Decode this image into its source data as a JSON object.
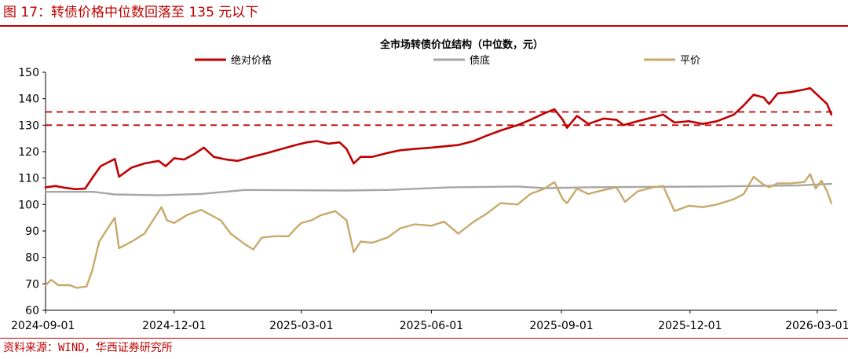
{
  "figure_title": "图 17：转债价格中位数回落至 135 元以下",
  "source_note": "资料来源：WIND，华西证券研究所",
  "colors": {
    "accent": "#c00000",
    "absolute": "#c00000",
    "bond_floor": "#a6a6a6",
    "parity": "#c8a96a"
  },
  "chart_data": {
    "type": "line",
    "title": "全市场转债价位结构（中位数，元）",
    "xlabel": "",
    "ylabel": "",
    "ylim": [
      60,
      150
    ],
    "yticks": [
      60,
      70,
      80,
      90,
      100,
      110,
      120,
      130,
      140,
      150
    ],
    "xlim": [
      "2024-09-01",
      "2026-03-15"
    ],
    "xticks": [
      "2024-09-01",
      "2024-12-01",
      "2025-03-01",
      "2025-06-01",
      "2025-09-01",
      "2025-12-01",
      "2026-03-01"
    ],
    "reference_lines": [
      135,
      130
    ],
    "legend_position": "top",
    "grid": false,
    "series": [
      {
        "name": "绝对价格",
        "color": "#c00000",
        "points": [
          [
            "2024-09-01",
            106.5
          ],
          [
            "2024-09-08",
            107
          ],
          [
            "2024-09-15",
            106.3
          ],
          [
            "2024-09-22",
            105.8
          ],
          [
            "2024-09-29",
            106
          ],
          [
            "2024-10-04",
            110
          ],
          [
            "2024-10-10",
            114.5
          ],
          [
            "2024-10-20",
            117.2
          ],
          [
            "2024-10-23",
            110.5
          ],
          [
            "2024-11-01",
            114
          ],
          [
            "2024-11-10",
            115.5
          ],
          [
            "2024-11-20",
            116.5
          ],
          [
            "2024-11-25",
            114.5
          ],
          [
            "2024-12-01",
            117.5
          ],
          [
            "2024-12-08",
            117
          ],
          [
            "2024-12-15",
            119
          ],
          [
            "2024-12-22",
            121.5
          ],
          [
            "2024-12-29",
            118
          ],
          [
            "2025-01-07",
            117
          ],
          [
            "2025-01-15",
            116.5
          ],
          [
            "2025-01-25",
            118
          ],
          [
            "2025-02-05",
            119.5
          ],
          [
            "2025-02-15",
            121
          ],
          [
            "2025-02-25",
            122.5
          ],
          [
            "2025-03-05",
            123.5
          ],
          [
            "2025-03-12",
            124
          ],
          [
            "2025-03-20",
            123
          ],
          [
            "2025-03-28",
            123.5
          ],
          [
            "2025-04-02",
            121
          ],
          [
            "2025-04-07",
            115.5
          ],
          [
            "2025-04-12",
            118
          ],
          [
            "2025-04-20",
            118
          ],
          [
            "2025-05-01",
            119.5
          ],
          [
            "2025-05-10",
            120.5
          ],
          [
            "2025-05-20",
            121
          ],
          [
            "2025-06-01",
            121.5
          ],
          [
            "2025-06-10",
            122
          ],
          [
            "2025-06-20",
            122.5
          ],
          [
            "2025-07-01",
            124
          ],
          [
            "2025-07-10",
            126
          ],
          [
            "2025-07-20",
            128
          ],
          [
            "2025-08-01",
            130
          ],
          [
            "2025-08-10",
            132
          ],
          [
            "2025-08-20",
            134.5
          ],
          [
            "2025-08-27",
            136
          ],
          [
            "2025-09-02",
            132
          ],
          [
            "2025-09-05",
            129
          ],
          [
            "2025-09-12",
            133.5
          ],
          [
            "2025-09-20",
            130.5
          ],
          [
            "2025-10-01",
            132.5
          ],
          [
            "2025-10-10",
            132
          ],
          [
            "2025-10-15",
            130
          ],
          [
            "2025-10-25",
            131.5
          ],
          [
            "2025-11-05",
            133
          ],
          [
            "2025-11-12",
            134
          ],
          [
            "2025-11-20",
            131
          ],
          [
            "2025-11-30",
            131.5
          ],
          [
            "2025-12-10",
            130.5
          ],
          [
            "2025-12-20",
            131.5
          ],
          [
            "2026-01-01",
            134
          ],
          [
            "2026-01-08",
            137.5
          ],
          [
            "2026-01-15",
            141.5
          ],
          [
            "2026-01-22",
            140.5
          ],
          [
            "2026-01-26",
            138
          ],
          [
            "2026-02-01",
            142
          ],
          [
            "2026-02-10",
            142.5
          ],
          [
            "2026-02-20",
            143.5
          ],
          [
            "2026-02-24",
            144
          ],
          [
            "2026-02-28",
            142
          ],
          [
            "2026-03-04",
            140
          ],
          [
            "2026-03-08",
            138
          ],
          [
            "2026-03-11",
            134
          ]
        ]
      },
      {
        "name": "债底",
        "color": "#a6a6a6",
        "points": [
          [
            "2024-09-01",
            104.8
          ],
          [
            "2024-10-05",
            104.8
          ],
          [
            "2024-10-20",
            103.8
          ],
          [
            "2024-11-20",
            103.5
          ],
          [
            "2024-12-20",
            104
          ],
          [
            "2025-01-20",
            105.5
          ],
          [
            "2025-04-01",
            105.3
          ],
          [
            "2025-05-01",
            105.5
          ],
          [
            "2025-06-15",
            106.5
          ],
          [
            "2025-08-01",
            106.8
          ],
          [
            "2025-08-20",
            106.2
          ],
          [
            "2025-09-20",
            106.5
          ],
          [
            "2025-12-15",
            106.8
          ],
          [
            "2026-02-15",
            107.2
          ],
          [
            "2026-03-11",
            107.8
          ]
        ]
      },
      {
        "name": "平价",
        "color": "#c8a96a",
        "points": [
          [
            "2024-09-01",
            69.5
          ],
          [
            "2024-09-05",
            71.5
          ],
          [
            "2024-09-10",
            69.5
          ],
          [
            "2024-09-18",
            69.5
          ],
          [
            "2024-09-23",
            68.5
          ],
          [
            "2024-09-30",
            69
          ],
          [
            "2024-10-04",
            75
          ],
          [
            "2024-10-09",
            86
          ],
          [
            "2024-10-15",
            91
          ],
          [
            "2024-10-20",
            95
          ],
          [
            "2024-10-23",
            83.5
          ],
          [
            "2024-11-01",
            86
          ],
          [
            "2024-11-10",
            89
          ],
          [
            "2024-11-16",
            94
          ],
          [
            "2024-11-22",
            99
          ],
          [
            "2024-11-26",
            94
          ],
          [
            "2024-12-01",
            93
          ],
          [
            "2024-12-10",
            96
          ],
          [
            "2024-12-20",
            98
          ],
          [
            "2025-01-03",
            94
          ],
          [
            "2025-01-10",
            89
          ],
          [
            "2025-01-20",
            85
          ],
          [
            "2025-01-26",
            83
          ],
          [
            "2025-02-01",
            87.5
          ],
          [
            "2025-02-10",
            88
          ],
          [
            "2025-02-20",
            88
          ],
          [
            "2025-02-25",
            91
          ],
          [
            "2025-03-01",
            93
          ],
          [
            "2025-03-08",
            94
          ],
          [
            "2025-03-15",
            96
          ],
          [
            "2025-03-25",
            97.5
          ],
          [
            "2025-04-02",
            94
          ],
          [
            "2025-04-07",
            82
          ],
          [
            "2025-04-12",
            86
          ],
          [
            "2025-04-20",
            85.5
          ],
          [
            "2025-05-01",
            87.5
          ],
          [
            "2025-05-10",
            91
          ],
          [
            "2025-05-20",
            92.5
          ],
          [
            "2025-06-01",
            92
          ],
          [
            "2025-06-10",
            93.5
          ],
          [
            "2025-06-20",
            89
          ],
          [
            "2025-07-01",
            93.5
          ],
          [
            "2025-07-10",
            96.5
          ],
          [
            "2025-07-20",
            100.5
          ],
          [
            "2025-08-01",
            100
          ],
          [
            "2025-08-10",
            104
          ],
          [
            "2025-08-20",
            106
          ],
          [
            "2025-08-27",
            108.5
          ],
          [
            "2025-09-02",
            102
          ],
          [
            "2025-09-05",
            100.5
          ],
          [
            "2025-09-12",
            106
          ],
          [
            "2025-09-20",
            104
          ],
          [
            "2025-10-01",
            105.5
          ],
          [
            "2025-10-10",
            106.5
          ],
          [
            "2025-10-16",
            101
          ],
          [
            "2025-10-25",
            105
          ],
          [
            "2025-11-05",
            106.5
          ],
          [
            "2025-11-12",
            107
          ],
          [
            "2025-11-20",
            97.5
          ],
          [
            "2025-11-30",
            99.5
          ],
          [
            "2025-12-10",
            99
          ],
          [
            "2025-12-20",
            100
          ],
          [
            "2026-01-01",
            102
          ],
          [
            "2026-01-08",
            104
          ],
          [
            "2026-01-15",
            110.5
          ],
          [
            "2026-01-22",
            107.5
          ],
          [
            "2026-01-26",
            106.5
          ],
          [
            "2026-02-01",
            108
          ],
          [
            "2026-02-10",
            108
          ],
          [
            "2026-02-20",
            108.5
          ],
          [
            "2026-02-24",
            111.5
          ],
          [
            "2026-02-28",
            106
          ],
          [
            "2026-03-04",
            109
          ],
          [
            "2026-03-08",
            105
          ],
          [
            "2026-03-11",
            100.5
          ]
        ]
      }
    ]
  }
}
